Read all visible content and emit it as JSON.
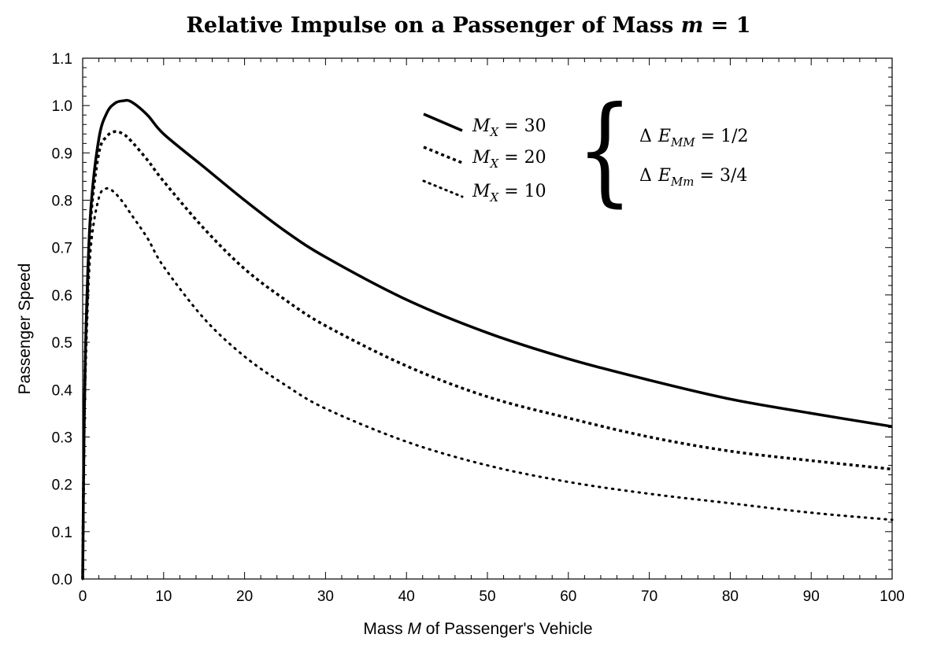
{
  "chart_data": {
    "type": "line",
    "title": {
      "prefix": "Relative Impulse on a Passenger of Mass ",
      "variable": "m",
      "suffix": " = 1"
    },
    "xlabel": {
      "prefix": "Mass ",
      "variable": "M",
      "suffix": " of Passenger's Vehicle"
    },
    "ylabel": "Passenger Speed",
    "xlim": [
      0,
      100
    ],
    "ylim": [
      0,
      1.1
    ],
    "x_ticks": [
      0,
      10,
      20,
      30,
      40,
      50,
      60,
      70,
      80,
      90,
      100
    ],
    "x_tick_labels": [
      "0",
      "10",
      "20",
      "30",
      "40",
      "50",
      "60",
      "70",
      "80",
      "90",
      "100"
    ],
    "y_ticks": [
      0.0,
      0.1,
      0.2,
      0.3,
      0.4,
      0.5,
      0.6,
      0.7,
      0.8,
      0.9,
      1.0,
      1.1
    ],
    "y_tick_labels": [
      "0.0",
      "0.1",
      "0.2",
      "0.3",
      "0.4",
      "0.5",
      "0.6",
      "0.7",
      "0.8",
      "0.9",
      "1.0",
      "1.1"
    ],
    "grid": false,
    "legend_position": "top-right",
    "x": [
      0,
      0.2,
      0.5,
      1,
      2,
      3,
      4,
      5,
      6,
      8,
      10,
      15,
      20,
      25,
      30,
      40,
      50,
      60,
      70,
      80,
      90,
      100
    ],
    "series": [
      {
        "name": "M_X = 30",
        "legend": {
          "variable": "M",
          "subscript": "X",
          "suffix": " = 30"
        },
        "style": "solid",
        "values": [
          0,
          0.35,
          0.58,
          0.78,
          0.93,
          0.985,
          1.005,
          1.01,
          1.008,
          0.98,
          0.94,
          0.87,
          0.8,
          0.735,
          0.68,
          0.59,
          0.52,
          0.465,
          0.42,
          0.38,
          0.35,
          0.322
        ]
      },
      {
        "name": "M_X = 20",
        "legend": {
          "variable": "M",
          "subscript": "X",
          "suffix": " = 20"
        },
        "style": "dashed",
        "values": [
          0,
          0.34,
          0.56,
          0.76,
          0.9,
          0.935,
          0.945,
          0.94,
          0.925,
          0.885,
          0.84,
          0.74,
          0.655,
          0.59,
          0.535,
          0.45,
          0.385,
          0.34,
          0.3,
          0.27,
          0.25,
          0.232
        ]
      },
      {
        "name": "M_X = 10",
        "legend": {
          "variable": "M",
          "subscript": "X",
          "suffix": " = 10"
        },
        "style": "dotted",
        "values": [
          0,
          0.31,
          0.52,
          0.7,
          0.805,
          0.825,
          0.815,
          0.795,
          0.77,
          0.72,
          0.66,
          0.55,
          0.47,
          0.41,
          0.36,
          0.29,
          0.24,
          0.205,
          0.18,
          0.16,
          0.14,
          0.125
        ]
      }
    ],
    "annotations": {
      "energy_mm": {
        "delta": "Δ",
        "variable": "E",
        "subscript": "MM",
        "suffix": " = 1/2"
      },
      "energy_mm_small": {
        "delta": "Δ",
        "variable": "E",
        "subscript": "Mm",
        "suffix": " = 3/4"
      },
      "brace": "{"
    }
  }
}
